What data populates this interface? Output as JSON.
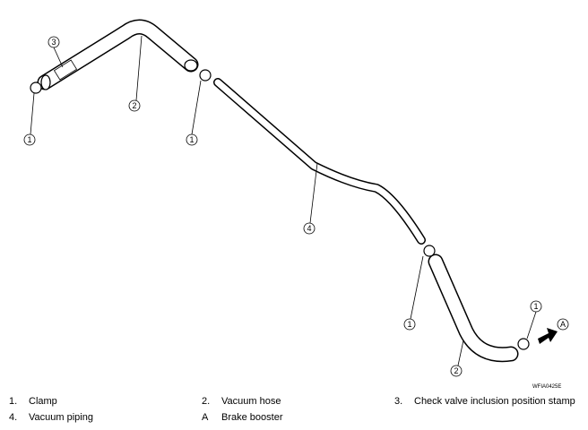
{
  "callouts": [
    "3",
    "2",
    "1",
    "1",
    "4",
    "1",
    "1",
    "2"
  ],
  "arrow_label": "A",
  "figure_id": "WFIA0425E",
  "legend": [
    {
      "number": "1.",
      "text": "Clamp"
    },
    {
      "number": "2.",
      "text": "Vacuum hose"
    },
    {
      "number": "3.",
      "text": "Check valve inclusion position stamp"
    },
    {
      "number": "4.",
      "text": "Vacuum piping"
    },
    {
      "number": "A",
      "text": "Brake booster"
    }
  ]
}
